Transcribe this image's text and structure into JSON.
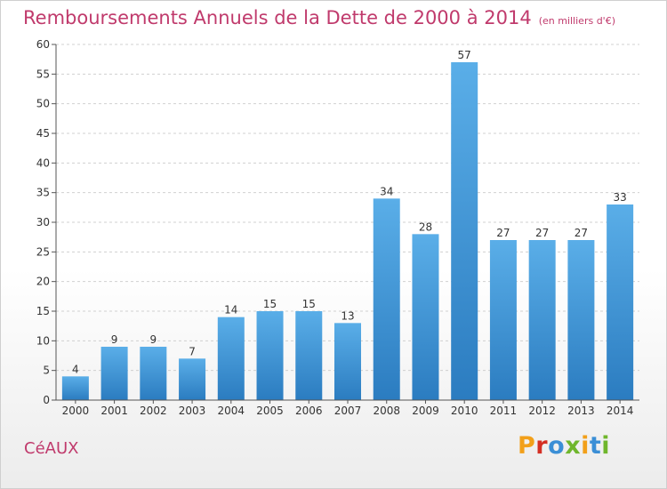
{
  "header": {
    "title": "Remboursements Annuels de la Dette de 2000 à 2014",
    "subtitle": "(en milliers d'€)"
  },
  "footer": {
    "town": "CéAUX",
    "logo_text": "Proxiti"
  },
  "colors": {
    "title": "#c03a6c",
    "bar_top": "#5aaee8",
    "bar_bottom": "#2b7cc0",
    "logo_letters": [
      "#f2a01a",
      "#d42f24",
      "#3b8fd6",
      "#6fb62c",
      "#f2a01a",
      "#3b8fd6",
      "#6fb62c"
    ]
  },
  "chart_data": {
    "type": "bar",
    "title": "Remboursements Annuels de la Dette de 2000 à 2014",
    "categories": [
      "2000",
      "2001",
      "2002",
      "2003",
      "2004",
      "2005",
      "2006",
      "2007",
      "2008",
      "2009",
      "2010",
      "2011",
      "2012",
      "2013",
      "2014"
    ],
    "values": [
      4,
      9,
      9,
      7,
      14,
      15,
      15,
      13,
      34,
      28,
      57,
      27,
      27,
      27,
      33
    ],
    "ylim": [
      0,
      60
    ],
    "yticks": [
      0,
      5,
      10,
      15,
      20,
      25,
      30,
      35,
      40,
      45,
      50,
      55,
      60
    ],
    "grid": "horizontal-dashed",
    "legend": "none"
  }
}
